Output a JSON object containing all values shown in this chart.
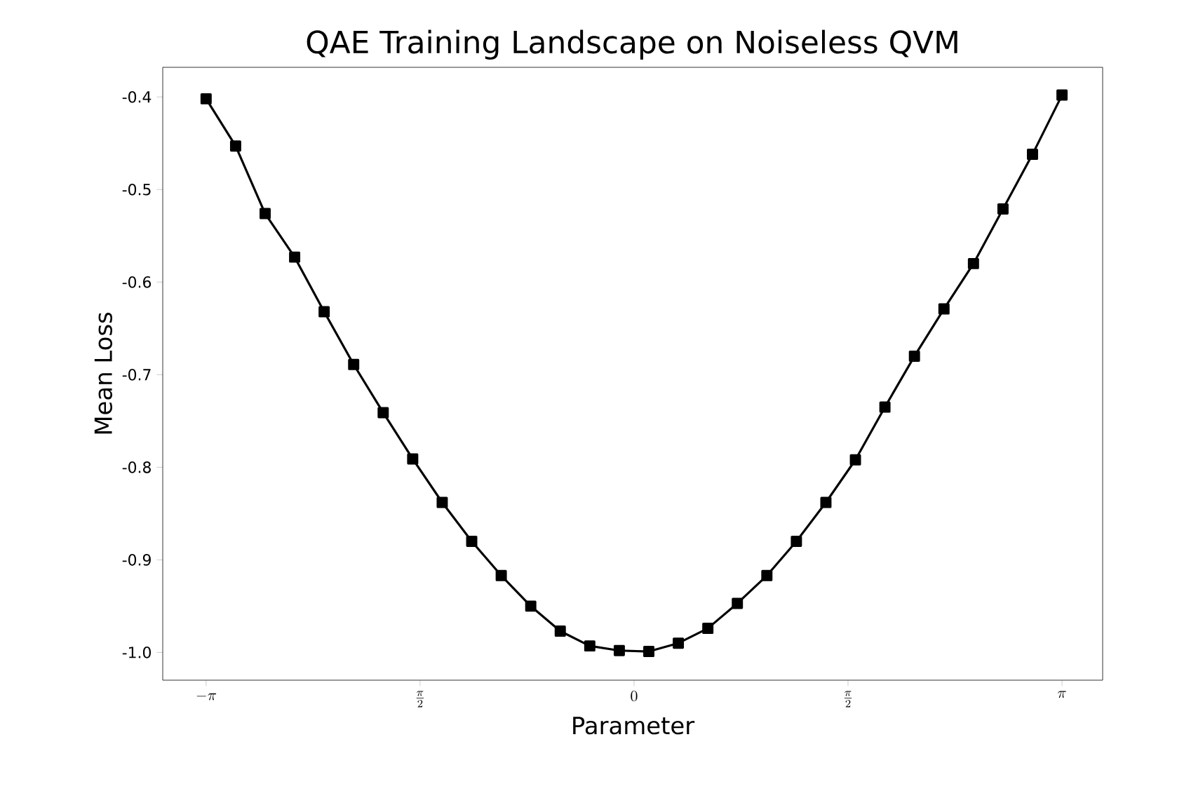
{
  "chart_data": {
    "type": "line",
    "title": "QAE Training Landscape on Noiseless QVM",
    "xlabel": "Parameter",
    "ylabel": "Mean Loss",
    "x": [
      -3.1416,
      -2.9249,
      -2.7083,
      -2.4916,
      -2.275,
      -2.0583,
      -1.8416,
      -1.625,
      -1.4083,
      -1.1917,
      -0.975,
      -0.7583,
      -0.5417,
      -0.325,
      -0.1083,
      0.1083,
      0.325,
      0.5417,
      0.7583,
      0.975,
      1.1917,
      1.4083,
      1.625,
      1.8416,
      2.0583,
      2.275,
      2.4916,
      2.7083,
      2.9249,
      3.1416
    ],
    "series": [
      {
        "color": "#000000",
        "values": [
          -0.402,
          -0.453,
          -0.526,
          -0.573,
          -0.632,
          -0.689,
          -0.741,
          -0.791,
          -0.838,
          -0.88,
          -0.917,
          -0.95,
          -0.977,
          -0.993,
          -0.998,
          -0.999,
          -0.99,
          -0.974,
          -0.947,
          -0.917,
          -0.88,
          -0.838,
          -0.792,
          -0.735,
          -0.68,
          -0.629,
          -0.58,
          -0.521,
          -0.462,
          -0.398
        ]
      }
    ],
    "xlim": [
      -3.46,
      3.44
    ],
    "ylim": [
      -1.03,
      -0.368
    ],
    "xticks": [
      {
        "value": -3.1416,
        "label": "-\\pi"
      },
      {
        "value": -1.5708,
        "label": "\\frac{\\pi}{2}"
      },
      {
        "value": 0,
        "label": "0"
      },
      {
        "value": 1.5708,
        "label": "\\frac{\\pi}{2}"
      },
      {
        "value": 3.1416,
        "label": "\\pi"
      }
    ],
    "yticks": [
      {
        "value": -1.0,
        "label": "-1.0"
      },
      -0.9,
      -0.8,
      -0.7,
      -0.6,
      -0.5,
      -0.4
    ],
    "marker": "square",
    "line_style": "solid",
    "grid": false
  }
}
